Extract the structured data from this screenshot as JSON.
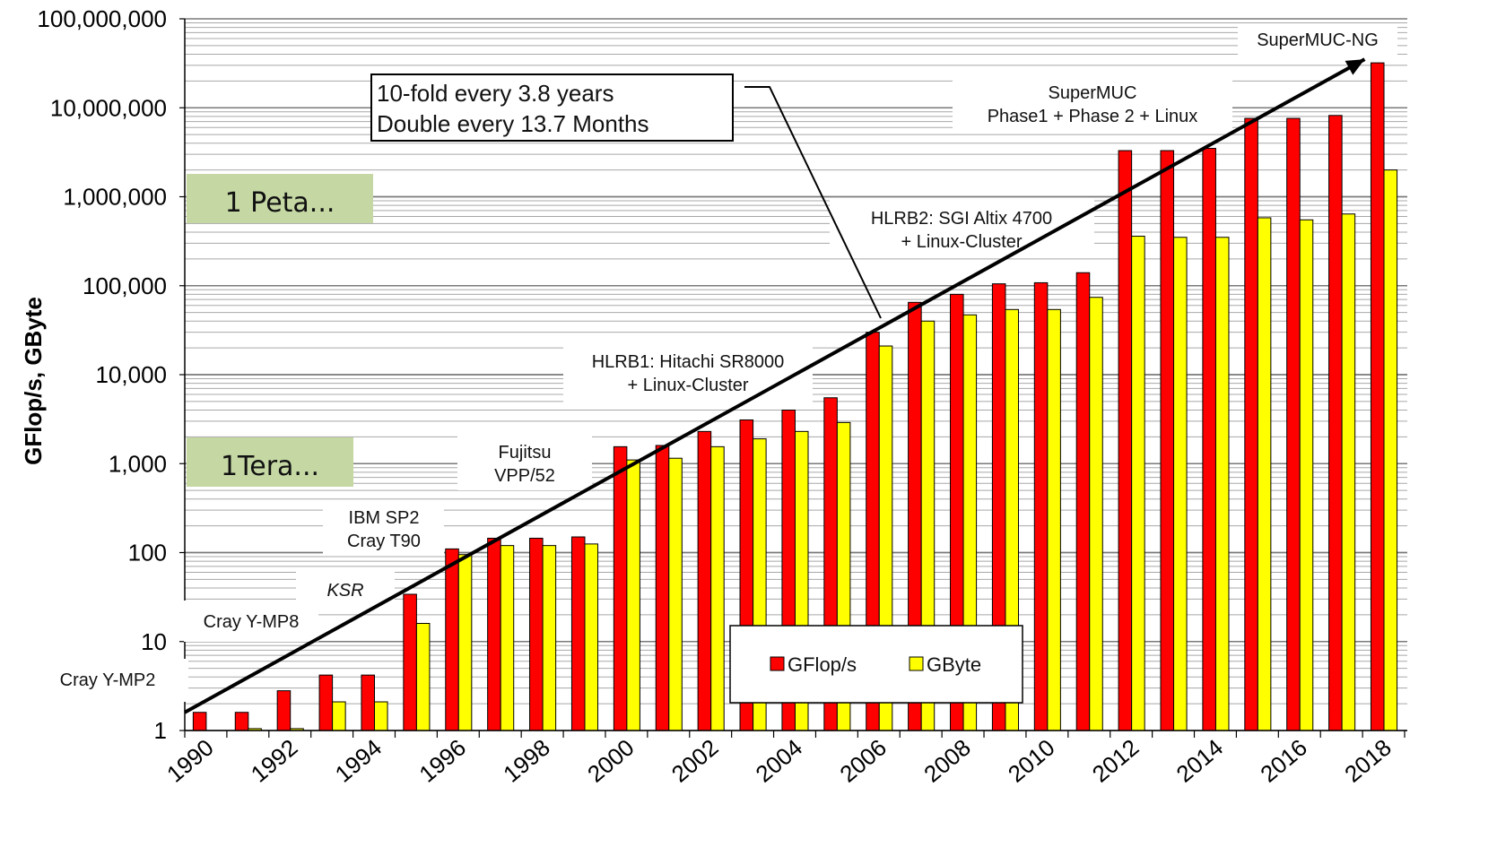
{
  "chart_data": {
    "type": "bar",
    "ylabel": "GFlop/s, GByte",
    "yscale": "log",
    "ylim": [
      1,
      100000000
    ],
    "yticks": [
      "1",
      "10",
      "100",
      "1,000",
      "10,000",
      "100,000",
      "1,000,000",
      "10,000,000",
      "100,000,000"
    ],
    "xtick_labels": [
      "1990",
      "1992",
      "1994",
      "1996",
      "1998",
      "2000",
      "2002",
      "2004",
      "2006",
      "2008",
      "2010",
      "2012",
      "2014",
      "2016",
      "2018"
    ],
    "categories": [
      "1990",
      "1991",
      "1992",
      "1993",
      "1994",
      "1995",
      "1996",
      "1997",
      "1998",
      "1999",
      "2000",
      "2001",
      "2002",
      "2003",
      "2004",
      "2005",
      "2006",
      "2007",
      "2008",
      "2009",
      "2010",
      "2011",
      "2012",
      "2013",
      "2014",
      "2015",
      "2016",
      "2017",
      "2018"
    ],
    "series": [
      {
        "name": "GFlop/s",
        "color": "#ff0000",
        "values": [
          1.6,
          1.6,
          2.8,
          4.2,
          4.2,
          34,
          110,
          145,
          145,
          150,
          1550,
          1600,
          2300,
          3100,
          4000,
          5500,
          30000,
          65000,
          80000,
          105000,
          108000,
          140000,
          3300000,
          3300000,
          3500000,
          7600000,
          7600000,
          8200000,
          32000000
        ]
      },
      {
        "name": "GByte",
        "color": "#ffff00",
        "values": [
          1.0,
          1.05,
          1.05,
          2.1,
          2.1,
          16,
          95,
          120,
          120,
          125,
          1100,
          1150,
          1550,
          1900,
          2300,
          2900,
          21000,
          40000,
          47000,
          54000,
          54000,
          74000,
          360000,
          350000,
          350000,
          580000,
          550000,
          640000,
          2000000
        ]
      }
    ],
    "legend": {
      "placement": "bottom-center",
      "entries": [
        "GFlop/s",
        "GByte"
      ]
    },
    "grid": true,
    "trend": {
      "from_year": 1990,
      "from_value": 1.6,
      "to_year": 2018,
      "to_value": 32000000,
      "color": "#000000"
    },
    "annotations": {
      "trend_box_line1": "10-fold every  3.8 years",
      "trend_box_line2": "Double every  13.7 Months",
      "peta": "1 Peta...",
      "tera": "1Tera...",
      "cray_ymp2": "Cray Y-MP2",
      "cray_ymp8": "Cray Y-MP8",
      "ksr": "KSR",
      "ibm_line1": "IBM SP2",
      "ibm_line2": "Cray T90",
      "fujitsu_line1": "Fujitsu",
      "fujitsu_line2": "VPP/52",
      "hlrb1_line1": "HLRB1: Hitachi SR8000",
      "hlrb1_line2": "+ Linux-Cluster",
      "hlrb2_line1": "HLRB2: SGI Altix 4700",
      "hlrb2_line2": "+ Linux-Cluster",
      "supermuc_line1": "SuperMUC",
      "supermuc_line2": "Phase1 + Phase 2 + Linux",
      "supermuc_ng": "SuperMUC-NG"
    },
    "colors": {
      "peta_fill": "#c5d8a4",
      "tera_fill": "#c5d8a4",
      "grid": "#8c8c8c"
    }
  }
}
